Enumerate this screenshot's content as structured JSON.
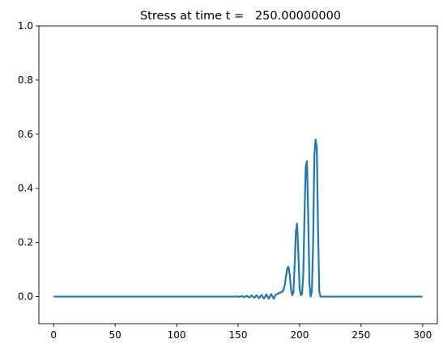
{
  "chart_data": {
    "type": "line",
    "title": "Stress at time t =   250.00000000",
    "xlabel": "",
    "ylabel": "",
    "xlim": [
      -12,
      312
    ],
    "ylim": [
      -0.1,
      1.0
    ],
    "x_ticks": [
      0,
      50,
      100,
      150,
      200,
      250,
      300
    ],
    "y_ticks": [
      0.0,
      0.2,
      0.4,
      0.6,
      0.8,
      1.0
    ],
    "x_tick_labels": [
      "0",
      "50",
      "100",
      "150",
      "200",
      "250",
      "300"
    ],
    "y_tick_labels": [
      "0.0",
      "0.2",
      "0.4",
      "0.6",
      "0.8",
      "1.0"
    ],
    "grid": false,
    "series": [
      {
        "color": "#1f77b4",
        "x": [
          0,
          145,
          148,
          149,
          150,
          151,
          152,
          153,
          154,
          155,
          156,
          157,
          158,
          159,
          160,
          161,
          162,
          163,
          164,
          165,
          166,
          167,
          168,
          169,
          170,
          171,
          172,
          173,
          174,
          175,
          176,
          177,
          178,
          179,
          180,
          181,
          182,
          183,
          184,
          185,
          186,
          187,
          188,
          189,
          190,
          191,
          192,
          193,
          194,
          195,
          196,
          197,
          198,
          199,
          200,
          201,
          202,
          203,
          204,
          205,
          206,
          207,
          208,
          209,
          210,
          211,
          212,
          213,
          214,
          215,
          216,
          217,
          218,
          220,
          300
        ],
        "y": [
          0.0,
          0.0,
          0.0,
          0.001,
          0.0,
          -0.001,
          0.0,
          0.002,
          0.0,
          -0.002,
          0.0,
          0.003,
          0.0,
          -0.003,
          0.0,
          0.004,
          0.0,
          -0.004,
          0.0,
          0.005,
          0.0,
          -0.006,
          0.0,
          0.006,
          0.0,
          -0.007,
          0.0,
          0.008,
          0.0,
          -0.008,
          0.002,
          0.009,
          0.0,
          -0.008,
          0.003,
          0.008,
          0.01,
          0.012,
          0.014,
          0.016,
          0.018,
          0.025,
          0.045,
          0.075,
          0.105,
          0.11,
          0.08,
          0.03,
          0.005,
          0.015,
          0.12,
          0.24,
          0.27,
          0.16,
          0.03,
          0.005,
          0.01,
          0.08,
          0.3,
          0.48,
          0.5,
          0.3,
          0.05,
          0.0,
          0.02,
          0.2,
          0.52,
          0.58,
          0.55,
          0.25,
          0.02,
          0.0,
          0.0,
          0.0,
          0.0
        ]
      }
    ]
  }
}
